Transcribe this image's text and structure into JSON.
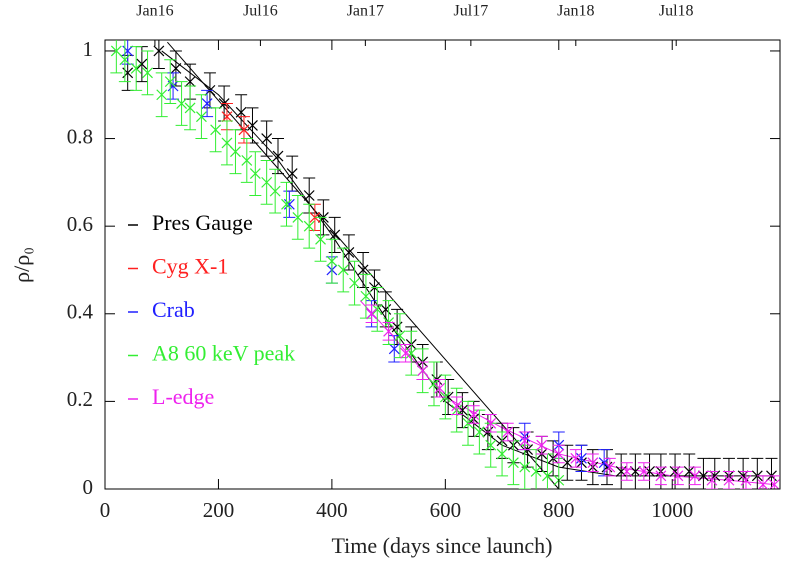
{
  "chart_data": {
    "type": "scatter",
    "x_label": "Time (days since launch)",
    "y_label": "ρ/ρ₀",
    "xlim": [
      0,
      1190
    ],
    "ylim": [
      0,
      1.025
    ],
    "xticks": [
      0,
      200,
      400,
      600,
      800,
      1000
    ],
    "yticks": [
      0,
      0.2,
      0.4,
      0.6,
      0.8,
      1
    ],
    "x2ticks": [
      {
        "value": 88,
        "label": "Jan16"
      },
      {
        "value": 274,
        "label": "Jul16"
      },
      {
        "value": 459,
        "label": "Jan17"
      },
      {
        "value": 645,
        "label": "Jul17"
      },
      {
        "value": 830,
        "label": "Jan18"
      },
      {
        "value": 1007,
        "label": "Jul18"
      }
    ],
    "grid": false,
    "series": [
      {
        "name": "Pres Gauge",
        "color": "#000000",
        "error": 0.04,
        "x": [
          40,
          65,
          95,
          125,
          150,
          185,
          210,
          240,
          260,
          285,
          305,
          330,
          360,
          385,
          405,
          430,
          455,
          475,
          495,
          515,
          540,
          560,
          585,
          605,
          630,
          650,
          675,
          700,
          720,
          745,
          770,
          790,
          815,
          840,
          860,
          885,
          910,
          935,
          960,
          980,
          1005,
          1030,
          1055,
          1075,
          1100,
          1125,
          1150,
          1175
        ],
        "values": [
          0.95,
          0.97,
          1.0,
          0.96,
          0.93,
          0.91,
          0.88,
          0.86,
          0.83,
          0.8,
          0.76,
          0.72,
          0.67,
          0.62,
          0.58,
          0.54,
          0.5,
          0.46,
          0.41,
          0.37,
          0.33,
          0.29,
          0.25,
          0.21,
          0.18,
          0.16,
          0.13,
          0.11,
          0.1,
          0.09,
          0.08,
          0.07,
          0.06,
          0.06,
          0.05,
          0.05,
          0.04,
          0.04,
          0.04,
          0.04,
          0.04,
          0.04,
          0.03,
          0.03,
          0.03,
          0.03,
          0.03,
          0.03
        ]
      },
      {
        "name": "Cyg X-1",
        "color": "#ff2020",
        "error": 0.03,
        "x": [
          215,
          245,
          370
        ],
        "values": [
          0.85,
          0.82,
          0.62
        ]
      },
      {
        "name": "Crab",
        "color": "#2020ff",
        "error": 0.03,
        "x": [
          40,
          120,
          180,
          325,
          400,
          470,
          510,
          740,
          800,
          840,
          880
        ],
        "values": [
          1.0,
          0.92,
          0.88,
          0.65,
          0.5,
          0.4,
          0.32,
          0.12,
          0.1,
          0.07,
          0.06
        ]
      },
      {
        "name": "A8 60 keV peak",
        "color": "#33ee33",
        "error": 0.05,
        "x": [
          20,
          35,
          55,
          75,
          100,
          115,
          135,
          150,
          170,
          195,
          215,
          230,
          250,
          265,
          285,
          300,
          320,
          340,
          360,
          380,
          400,
          420,
          440,
          460,
          480,
          500,
          520,
          540,
          560,
          580,
          600,
          620,
          640,
          660,
          680,
          700,
          720,
          740,
          760,
          780,
          800
        ],
        "values": [
          1.0,
          0.98,
          0.96,
          0.95,
          0.9,
          0.93,
          0.88,
          0.87,
          0.85,
          0.82,
          0.79,
          0.77,
          0.75,
          0.72,
          0.7,
          0.68,
          0.65,
          0.62,
          0.6,
          0.57,
          0.52,
          0.5,
          0.47,
          0.44,
          0.41,
          0.38,
          0.35,
          0.31,
          0.27,
          0.24,
          0.21,
          0.18,
          0.15,
          0.13,
          0.1,
          0.08,
          0.06,
          0.05,
          0.04,
          0.03,
          0.02
        ]
      },
      {
        "name": "L-edge",
        "color": "#ee22ee",
        "error": 0.02,
        "x": [
          470,
          500,
          530,
          560,
          590,
          620,
          650,
          680,
          710,
          740,
          770,
          800,
          830,
          860,
          890,
          920,
          950,
          980,
          1010,
          1040,
          1070,
          1100,
          1130,
          1160,
          1180
        ],
        "values": [
          0.4,
          0.36,
          0.31,
          0.27,
          0.23,
          0.19,
          0.17,
          0.15,
          0.13,
          0.11,
          0.1,
          0.08,
          0.07,
          0.06,
          0.05,
          0.04,
          0.04,
          0.03,
          0.03,
          0.03,
          0.02,
          0.02,
          0.02,
          0.01,
          0.01
        ]
      }
    ],
    "curves": [
      {
        "color": "#000000",
        "x": [
          110,
          800
        ],
        "values": [
          1.02,
          0
        ]
      },
      {
        "color": "#000000",
        "x": [
          100,
          200,
          300,
          400,
          500,
          600,
          700,
          800,
          900,
          1000,
          1100,
          1180
        ],
        "values": [
          1.0,
          0.9,
          0.76,
          0.58,
          0.38,
          0.2,
          0.1,
          0.05,
          0.03,
          0.03,
          0.03,
          0.03
        ]
      },
      {
        "color": "#ee22ee",
        "x": [
          450,
          500,
          600,
          700,
          800,
          900,
          1000,
          1100,
          1180
        ],
        "values": [
          0.43,
          0.36,
          0.21,
          0.14,
          0.08,
          0.05,
          0.03,
          0.02,
          0.01
        ]
      }
    ]
  }
}
